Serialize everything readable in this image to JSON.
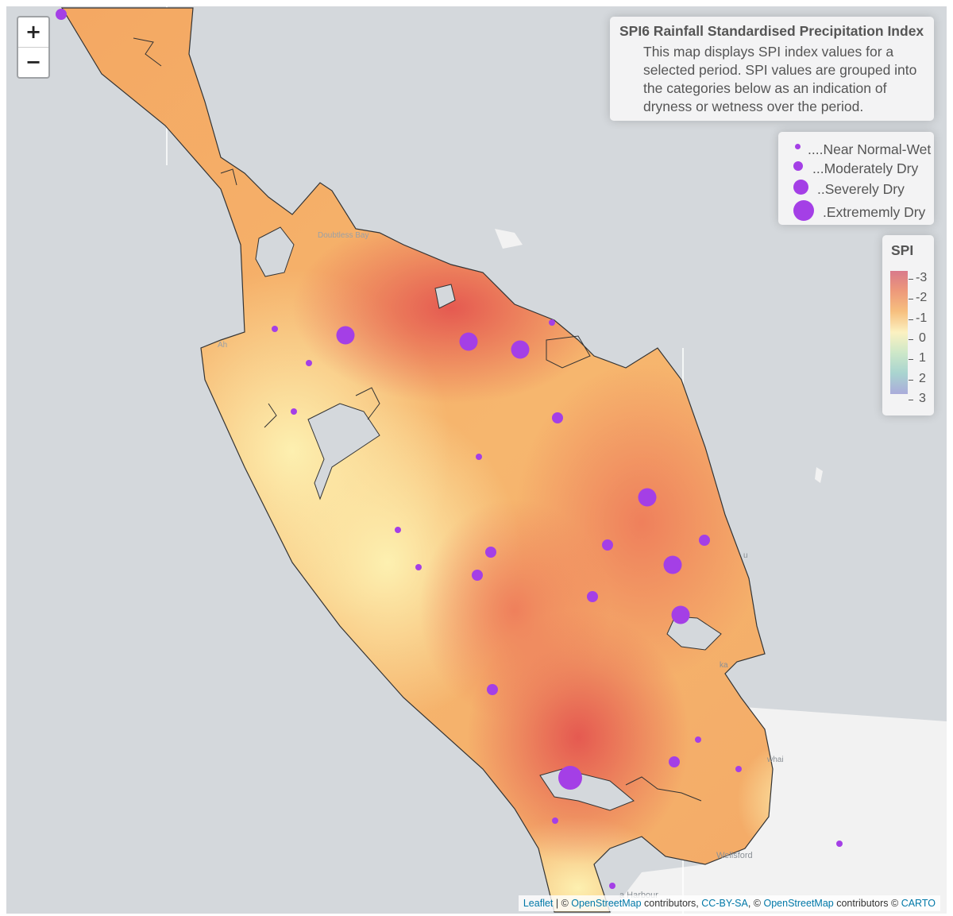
{
  "zoom": {
    "in_label": "+",
    "out_label": "−"
  },
  "info": {
    "title": "SPI6 Rainfall Standardised Precipitation Index",
    "description": "This map displays SPI index values for a selected period. SPI values are grouped into the categories below as an indication of dryness or wetness over the period."
  },
  "size_legend": [
    {
      "label": "....Near Normal-Wet"
    },
    {
      "label": "...Moderately Dry"
    },
    {
      "label": "..Severely Dry"
    },
    {
      "label": ".Extrememly Dry"
    }
  ],
  "spi_legend": {
    "title": "SPI",
    "ticks": [
      "-3",
      "-2",
      "-1",
      "0",
      "1",
      "2",
      "3"
    ]
  },
  "map_labels": {
    "doubtless_bay": "Doubtless Bay",
    "ahipara": "Ah",
    "wellsford": "Wellsford",
    "harbour": "a Harbour",
    "whai": "whai",
    "ka": "ka",
    "u": "u"
  },
  "attribution": {
    "leaflet": "Leaflet",
    "sep1": " | © ",
    "osm1": "OpenStreetMap",
    "contrib1": " contributors, ",
    "ccbysa": "CC-BY-SA",
    "sep2": ", © ",
    "osm2": "OpenStreetMap",
    "contrib2": " contributors © ",
    "carto": "CARTO"
  },
  "colors": {
    "marker": "#a43fe6",
    "water": "#d4d8dc",
    "outline": "#333333"
  }
}
